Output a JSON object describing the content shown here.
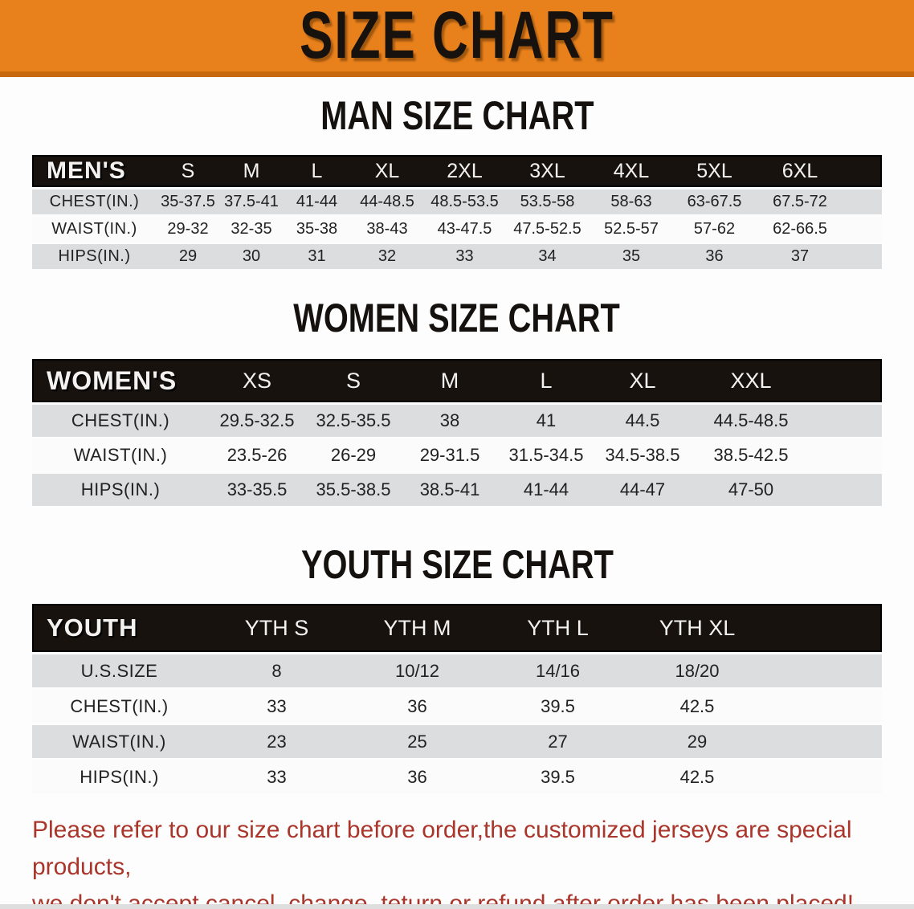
{
  "banner": {
    "title": "SIZE CHART",
    "bg_color": "#E8811C"
  },
  "sections": [
    {
      "title": "MAN SIZE CHART",
      "header_label": "MEN'S",
      "columns": [
        "S",
        "M",
        "L",
        "XL",
        "2XL",
        "3XL",
        "4XL",
        "5XL",
        "6XL"
      ],
      "rows": [
        {
          "label": "CHEST(IN.)",
          "values": [
            "35-37.5",
            "37.5-41",
            "41-44",
            "44-48.5",
            "48.5-53.5",
            "53.5-58",
            "58-63",
            "63-67.5",
            "67.5-72"
          ]
        },
        {
          "label": "WAIST(IN.)",
          "values": [
            "29-32",
            "32-35",
            "35-38",
            "38-43",
            "43-47.5",
            "47.5-52.5",
            "52.5-57",
            "57-62",
            "62-66.5"
          ]
        },
        {
          "label": "HIPS(IN.)",
          "values": [
            "29",
            "30",
            "31",
            "32",
            "33",
            "34",
            "35",
            "36",
            "37"
          ]
        }
      ]
    },
    {
      "title": "WOMEN SIZE CHART",
      "header_label": "WOMEN'S",
      "columns": [
        "XS",
        "S",
        "M",
        "L",
        "XL",
        "XXL"
      ],
      "rows": [
        {
          "label": "CHEST(IN.)",
          "values": [
            "29.5-32.5",
            "32.5-35.5",
            "38",
            "41",
            "44.5",
            "44.5-48.5"
          ]
        },
        {
          "label": "WAIST(IN.)",
          "values": [
            "23.5-26",
            "26-29",
            "29-31.5",
            "31.5-34.5",
            "34.5-38.5",
            "38.5-42.5"
          ]
        },
        {
          "label": "HIPS(IN.)",
          "values": [
            "33-35.5",
            "35.5-38.5",
            "38.5-41",
            "41-44",
            "44-47",
            "47-50"
          ]
        }
      ]
    },
    {
      "title": "YOUTH SIZE CHART",
      "header_label": "YOUTH",
      "columns": [
        "YTH S",
        "YTH M",
        "YTH L",
        "YTH XL"
      ],
      "rows": [
        {
          "label": "U.S.SIZE",
          "values": [
            "8",
            "10/12",
            "14/16",
            "18/20"
          ]
        },
        {
          "label": "CHEST(IN.)",
          "values": [
            "33",
            "36",
            "39.5",
            "42.5"
          ]
        },
        {
          "label": "WAIST(IN.)",
          "values": [
            "23",
            "25",
            "27",
            "29"
          ]
        },
        {
          "label": "HIPS(IN.)",
          "values": [
            "33",
            "36",
            "39.5",
            "42.5"
          ]
        }
      ]
    }
  ],
  "disclaimer": {
    "line1": "Please refer to our size chart before order,the customized jerseys are special products,",
    "line2": "we don't accept cancel, change, teturn or refund after order has been placed!",
    "color": "#A9352B"
  }
}
